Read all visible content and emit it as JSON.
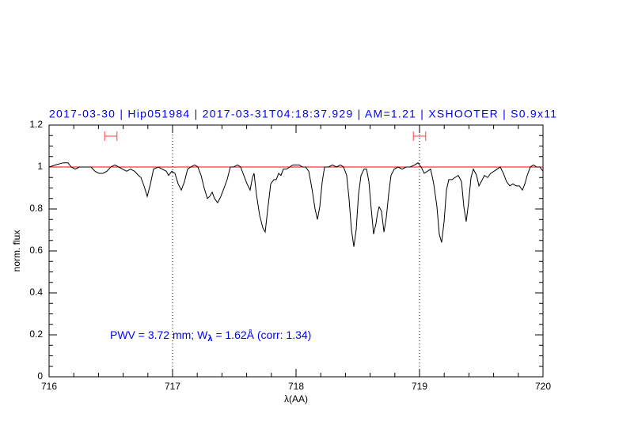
{
  "chart_data": {
    "type": "line",
    "title": "2017-03-30 | Hip051984 | 2017-03-31T04:18:37.929 | AM=1.21 | XSHOOTER | S0.9x11",
    "x_label": "λ(AA)",
    "y_label": "norm. flux",
    "annotation": [
      "PWV = 3.72 mm; W",
      "λ",
      " = 1.62Å (corr: 1.34)"
    ],
    "xlim": [
      716,
      720
    ],
    "xticks": [
      716,
      717,
      718,
      719,
      720
    ],
    "ylim": [
      0,
      1.2
    ],
    "yticks": [
      0,
      0.2,
      0.4,
      0.6,
      0.8,
      1,
      1.2
    ],
    "continuum": 1,
    "continuum_color": "#ff0000",
    "continuum_windows": [
      [
        716.45,
        716.55
      ],
      [
        718.95,
        719.05
      ]
    ],
    "window_color": "#ff4040",
    "markers": [
      717,
      719
    ],
    "series": [
      {
        "color": "#000000",
        "x": [
          716.0,
          716.051,
          716.115,
          716.154,
          716.179,
          716.212,
          716.244,
          716.276,
          716.308,
          716.34,
          716.372,
          716.404,
          716.436,
          716.468,
          716.5,
          716.532,
          716.564,
          716.596,
          716.628,
          716.66,
          716.692,
          716.724,
          716.744,
          716.769,
          716.795,
          716.821,
          716.846,
          716.885,
          716.917,
          716.949,
          716.968,
          716.994,
          717.019,
          717.045,
          717.071,
          717.096,
          717.122,
          717.147,
          717.179,
          717.205,
          717.231,
          717.256,
          717.282,
          717.301,
          717.321,
          717.34,
          717.365,
          717.391,
          717.417,
          717.442,
          717.468,
          717.494,
          717.526,
          717.551,
          717.577,
          717.603,
          717.628,
          717.647,
          717.66,
          717.679,
          717.705,
          717.731,
          717.75,
          717.769,
          717.795,
          717.821,
          717.84,
          717.859,
          717.878,
          717.897,
          717.923,
          717.949,
          717.974,
          718.0,
          718.026,
          718.051,
          718.077,
          718.103,
          718.128,
          718.154,
          718.173,
          718.192,
          718.212,
          718.231,
          718.263,
          718.295,
          718.327,
          718.359,
          718.385,
          718.41,
          718.429,
          718.449,
          718.468,
          718.487,
          718.506,
          718.526,
          718.551,
          718.571,
          718.59,
          718.609,
          718.628,
          718.647,
          718.66,
          718.673,
          718.692,
          718.712,
          718.731,
          718.75,
          718.769,
          718.795,
          718.827,
          718.859,
          718.891,
          718.923,
          718.962,
          718.987,
          719.013,
          719.038,
          719.064,
          719.09,
          719.115,
          719.141,
          719.16,
          719.179,
          719.199,
          719.218,
          719.237,
          719.263,
          719.288,
          719.314,
          719.34,
          719.359,
          719.378,
          719.397,
          719.417,
          719.436,
          719.462,
          719.481,
          719.5,
          719.526,
          719.551,
          719.577,
          719.603,
          719.628,
          719.654,
          719.679,
          719.705,
          719.731,
          719.756,
          719.782,
          719.808,
          719.833,
          719.853,
          719.872,
          719.897,
          719.923,
          719.949,
          719.974,
          720.0
        ],
        "values": [
          1.0,
          1.01,
          1.02,
          1.02,
          1.0,
          0.99,
          1.0,
          1.0,
          1.0,
          1.0,
          0.98,
          0.97,
          0.97,
          0.98,
          1.0,
          1.01,
          1.0,
          0.99,
          0.98,
          0.99,
          0.98,
          0.96,
          0.95,
          0.91,
          0.86,
          0.92,
          0.99,
          1.0,
          0.99,
          0.98,
          0.96,
          0.98,
          0.97,
          0.92,
          0.89,
          0.93,
          0.99,
          1.0,
          1.01,
          1.0,
          0.96,
          0.9,
          0.85,
          0.86,
          0.88,
          0.85,
          0.83,
          0.86,
          0.9,
          0.94,
          1.0,
          1.0,
          1.01,
          1.0,
          0.96,
          0.92,
          0.89,
          0.95,
          0.97,
          0.87,
          0.77,
          0.71,
          0.69,
          0.79,
          0.92,
          0.94,
          0.94,
          0.97,
          0.96,
          0.99,
          0.99,
          1.0,
          1.01,
          1.01,
          1.01,
          1.0,
          1.0,
          0.98,
          0.9,
          0.8,
          0.75,
          0.81,
          0.93,
          1.0,
          1.0,
          1.01,
          1.0,
          1.01,
          1.0,
          0.96,
          0.85,
          0.7,
          0.62,
          0.7,
          0.87,
          0.96,
          0.99,
          0.99,
          0.93,
          0.8,
          0.68,
          0.73,
          0.78,
          0.81,
          0.79,
          0.69,
          0.76,
          0.87,
          0.96,
          0.99,
          1.0,
          0.99,
          1.0,
          1.0,
          1.01,
          1.02,
          1.0,
          0.97,
          0.98,
          0.99,
          0.92,
          0.81,
          0.68,
          0.64,
          0.74,
          0.89,
          0.94,
          0.94,
          0.95,
          0.96,
          0.93,
          0.81,
          0.74,
          0.83,
          0.95,
          0.99,
          0.96,
          0.91,
          0.93,
          0.96,
          0.95,
          0.97,
          0.98,
          0.99,
          1.0,
          0.97,
          0.93,
          0.91,
          0.92,
          0.91,
          0.91,
          0.89,
          0.92,
          0.96,
          1.0,
          1.01,
          1.0,
          1.0,
          0.98
        ]
      }
    ]
  }
}
